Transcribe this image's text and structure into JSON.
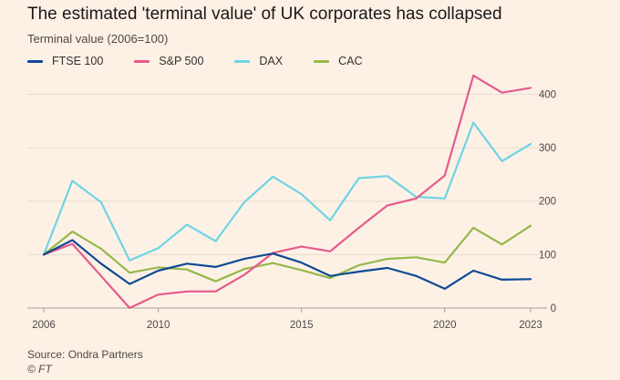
{
  "header": {
    "title": "The estimated 'terminal value' of UK corporates has collapsed",
    "subtitle": "Terminal value (2006=100)"
  },
  "footer": {
    "source": "Source: Ondra Partners",
    "credit": "© FT"
  },
  "chart_data": {
    "type": "line",
    "title": "The estimated 'terminal value' of UK corporates has collapsed",
    "subtitle": "Terminal value (2006=100)",
    "xlabel": "",
    "ylabel": "",
    "x": [
      2006,
      2007,
      2008,
      2009,
      2010,
      2011,
      2012,
      2013,
      2014,
      2015,
      2016,
      2017,
      2018,
      2019,
      2020,
      2021,
      2022,
      2023
    ],
    "xticks": [
      2006,
      2010,
      2015,
      2020,
      2023
    ],
    "yticks": [
      0,
      100,
      200,
      300,
      400
    ],
    "xlim": [
      2006,
      2023
    ],
    "ylim": [
      0,
      440
    ],
    "grid": "horizontal",
    "legend_position": "top-left",
    "series": [
      {
        "name": "FTSE 100",
        "color": "#0f4a93",
        "values": [
          100,
          127,
          83,
          45,
          70,
          83,
          77,
          92,
          102,
          85,
          60,
          68,
          75,
          60,
          36,
          70,
          53,
          54
        ]
      },
      {
        "name": "S&P 500",
        "color": "#e65a8c",
        "values": [
          100,
          120,
          60,
          0,
          25,
          31,
          31,
          62,
          103,
          115,
          106,
          150,
          192,
          205,
          248,
          435,
          403,
          412
        ]
      },
      {
        "name": "DAX",
        "color": "#6fd4e4",
        "values": [
          100,
          238,
          198,
          89,
          112,
          156,
          125,
          198,
          246,
          213,
          164,
          243,
          247,
          208,
          205,
          347,
          275,
          307
        ]
      },
      {
        "name": "CAC",
        "color": "#96b84a",
        "values": [
          100,
          143,
          111,
          66,
          76,
          72,
          50,
          73,
          84,
          71,
          56,
          80,
          92,
          95,
          85,
          150,
          119,
          154
        ]
      }
    ]
  }
}
